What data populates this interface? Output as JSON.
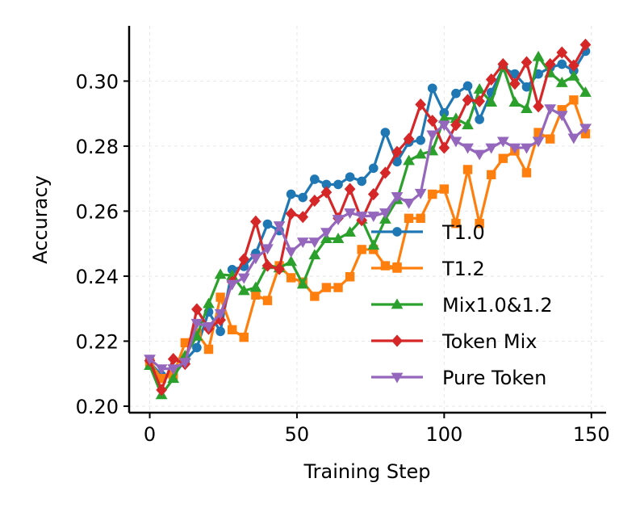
{
  "chart_data": {
    "type": "line",
    "title": "",
    "xlabel": "Training Step",
    "ylabel": "Accuracy",
    "xlim": [
      -7,
      155
    ],
    "ylim": [
      0.198,
      0.317
    ],
    "xticks": [
      0,
      50,
      100,
      150
    ],
    "xtick_labels": [
      "0",
      "50",
      "100",
      "150"
    ],
    "yticks": [
      0.2,
      0.22,
      0.24,
      0.26,
      0.28,
      0.3
    ],
    "ytick_labels": [
      "0.20",
      "0.22",
      "0.24",
      "0.26",
      "0.28",
      "0.30"
    ],
    "grid": true,
    "legend_position": "lower-right",
    "x": [
      0,
      4,
      8,
      12,
      16,
      20,
      24,
      28,
      32,
      36,
      40,
      44,
      48,
      52,
      56,
      60,
      64,
      68,
      72,
      76,
      80,
      84,
      88,
      92,
      96,
      100,
      104,
      108,
      112,
      116,
      120,
      124,
      128,
      132,
      136,
      140,
      144,
      148
    ],
    "series": [
      {
        "name": "T1.0",
        "color": "#1f77b4",
        "marker": "circle",
        "values": [
          0.2135,
          0.2095,
          0.2095,
          0.214,
          0.218,
          0.229,
          0.223,
          0.242,
          0.243,
          0.247,
          0.256,
          0.254,
          0.2652,
          0.2642,
          0.2698,
          0.2682,
          0.2682,
          0.2705,
          0.2692,
          0.2732,
          0.2842,
          0.2752,
          0.2812,
          0.2818,
          0.2978,
          0.2902,
          0.2962,
          0.2985,
          0.2882,
          0.2965,
          0.3042,
          0.3022,
          0.2982,
          0.3022,
          0.3042,
          0.3052,
          0.3032,
          0.3092
        ]
      },
      {
        "name": "T1.2",
        "color": "#ff7f0e",
        "marker": "square",
        "values": [
          0.2135,
          0.2085,
          0.2095,
          0.2195,
          0.2225,
          0.2175,
          0.2335,
          0.2235,
          0.2212,
          0.2342,
          0.2325,
          0.2432,
          0.2395,
          0.2382,
          0.2338,
          0.2365,
          0.2365,
          0.2398,
          0.2482,
          0.2482,
          0.2432,
          0.2428,
          0.2578,
          0.2578,
          0.2652,
          0.2668,
          0.2562,
          0.2728,
          0.2562,
          0.2712,
          0.2762,
          0.2785,
          0.2718,
          0.2842,
          0.2822,
          0.2912,
          0.2942,
          0.2838
        ]
      },
      {
        "name": "Mix1.0&1.2",
        "color": "#2ca02c",
        "marker": "triangle-up",
        "values": [
          0.2125,
          0.2035,
          0.2085,
          0.2155,
          0.2215,
          0.2315,
          0.2405,
          0.2402,
          0.2355,
          0.2365,
          0.2435,
          0.2425,
          0.2445,
          0.2375,
          0.2465,
          0.2515,
          0.2515,
          0.2535,
          0.2575,
          0.2495,
          0.2575,
          0.2635,
          0.2755,
          0.2775,
          0.2785,
          0.2885,
          0.2885,
          0.2865,
          0.2975,
          0.2935,
          0.3045,
          0.2935,
          0.2915,
          0.3075,
          0.3025,
          0.2995,
          0.3015,
          0.2965
        ]
      },
      {
        "name": "Token Mix",
        "color": "#d62728",
        "marker": "diamond",
        "values": [
          0.214,
          0.205,
          0.2145,
          0.213,
          0.2298,
          0.2238,
          0.2265,
          0.2382,
          0.2452,
          0.2568,
          0.2432,
          0.2422,
          0.2592,
          0.2582,
          0.2632,
          0.2658,
          0.2578,
          0.2668,
          0.2572,
          0.2652,
          0.2718,
          0.2782,
          0.2822,
          0.2928,
          0.2878,
          0.2795,
          0.2865,
          0.2942,
          0.2938,
          0.3005,
          0.3052,
          0.2992,
          0.3058,
          0.2922,
          0.3052,
          0.3088,
          0.3048,
          0.3112
        ]
      },
      {
        "name": "Pure Token",
        "color": "#9467bd",
        "marker": "triangle-down",
        "values": [
          0.2145,
          0.2115,
          0.2115,
          0.2135,
          0.2255,
          0.2245,
          0.2285,
          0.2375,
          0.2395,
          0.2455,
          0.2485,
          0.2555,
          0.2475,
          0.2505,
          0.2505,
          0.2535,
          0.2575,
          0.2595,
          0.2585,
          0.2585,
          0.2595,
          0.2645,
          0.2625,
          0.2655,
          0.2835,
          0.2865,
          0.2815,
          0.2795,
          0.2775,
          0.2795,
          0.2815,
          0.2795,
          0.2795,
          0.2815,
          0.2915,
          0.2895,
          0.2825,
          0.2855
        ]
      }
    ]
  }
}
